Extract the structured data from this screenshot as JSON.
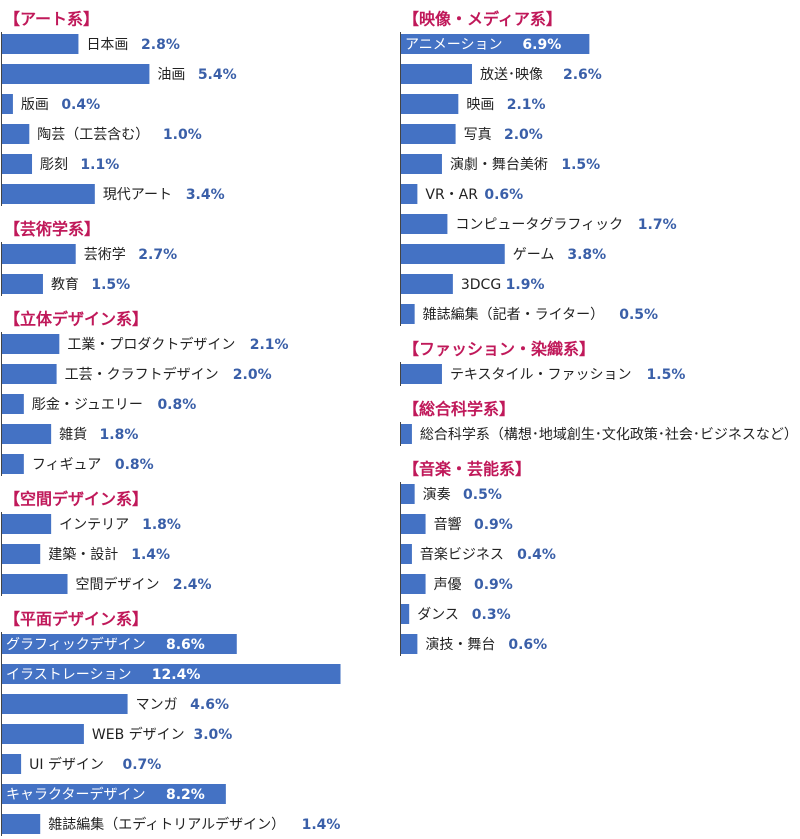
{
  "colors": {
    "bar": "#4472c4",
    "heading": "#c0195a",
    "value": "#3a5fa8",
    "label": "#222222"
  },
  "chart_data": {
    "type": "bar",
    "orientation": "horizontal",
    "unit": "%",
    "groups": [
      {
        "heading": "【アート系】",
        "items": [
          {
            "label": "日本画",
            "value": 2.8,
            "value_label": "2.8%"
          },
          {
            "label": "油画",
            "value": 5.4,
            "value_label": "5.4%"
          },
          {
            "label": "版画",
            "value": 0.4,
            "value_label": "0.4%"
          },
          {
            "label": "陶芸（工芸含む）",
            "value": 1.0,
            "value_label": "1.0%"
          },
          {
            "label": "彫刻",
            "value": 1.1,
            "value_label": "1.1%"
          },
          {
            "label": "現代アート",
            "value": 3.4,
            "value_label": "3.4%"
          }
        ]
      },
      {
        "heading": "【芸術学系】",
        "items": [
          {
            "label": "芸術学",
            "value": 2.7,
            "value_label": "2.7%"
          },
          {
            "label": "教育",
            "value": 1.5,
            "value_label": "1.5%"
          }
        ]
      },
      {
        "heading": "【立体デザイン系】",
        "items": [
          {
            "label": "工業・プロダクトデザイン",
            "value": 2.1,
            "value_label": "2.1%"
          },
          {
            "label": "工芸・クラフトデザイン",
            "value": 2.0,
            "value_label": "2.0%"
          },
          {
            "label": "彫金・ジュエリー",
            "value": 0.8,
            "value_label": "0.8%"
          },
          {
            "label": "雑貨",
            "value": 1.8,
            "value_label": "1.8%"
          },
          {
            "label": "フィギュア",
            "value": 0.8,
            "value_label": "0.8%"
          }
        ]
      },
      {
        "heading": "【空間デザイン系】",
        "items": [
          {
            "label": "インテリア",
            "value": 1.8,
            "value_label": "1.8%"
          },
          {
            "label": "建築・設計",
            "value": 1.4,
            "value_label": "1.4%"
          },
          {
            "label": "空間デザイン",
            "value": 2.4,
            "value_label": "2.4%"
          }
        ]
      },
      {
        "heading": "【平面デザイン系】",
        "items": [
          {
            "label": "グラフィックデザイン",
            "value": 8.6,
            "value_label": "8.6%",
            "inside": true
          },
          {
            "label": "イラストレーション",
            "value": 12.4,
            "value_label": "12.4%",
            "inside": true
          },
          {
            "label": "マンガ",
            "value": 4.6,
            "value_label": "4.6%"
          },
          {
            "label": "WEB デザイン",
            "value": 3.0,
            "value_label": "3.0%"
          },
          {
            "label": "UI デザイン",
            "value": 0.7,
            "value_label": "0.7%"
          },
          {
            "label": "キャラクターデザイン",
            "value": 8.2,
            "value_label": "8.2%",
            "inside": true
          },
          {
            "label": "雑誌編集（エディトリアルデザイン）",
            "value": 1.4,
            "value_label": "1.4%"
          }
        ]
      },
      {
        "heading": "【映像・メディア系】",
        "items": [
          {
            "label": "アニメーション",
            "value": 6.9,
            "value_label": "6.9%",
            "inside": true
          },
          {
            "label": "放送･映像",
            "value": 2.6,
            "value_label": "2.6%"
          },
          {
            "label": "映画",
            "value": 2.1,
            "value_label": "2.1%"
          },
          {
            "label": "写真",
            "value": 2.0,
            "value_label": "2.0%"
          },
          {
            "label": "演劇・舞台美術",
            "value": 1.5,
            "value_label": "1.5%"
          },
          {
            "label": "VR・AR",
            "value": 0.6,
            "value_label": "0.6%"
          },
          {
            "label": "コンピュータグラフィック",
            "value": 1.7,
            "value_label": "1.7%"
          },
          {
            "label": "ゲーム",
            "value": 3.8,
            "value_label": "3.8%"
          },
          {
            "label": "3DCG",
            "value": 1.9,
            "value_label": "1.9%"
          },
          {
            "label": "雑誌編集（記者・ライター）",
            "value": 0.5,
            "value_label": "0.5%"
          }
        ]
      },
      {
        "heading": "【ファッション・染織系】",
        "items": [
          {
            "label": "テキスタイル・ファッション",
            "value": 1.5,
            "value_label": "1.5%"
          }
        ]
      },
      {
        "heading": "【総合科学系】",
        "items": [
          {
            "label": "総合科学系（構想･地域創生･文化政策･社会･ビジネスなど）",
            "value": 0.4,
            "value_label": "0.4%"
          }
        ]
      },
      {
        "heading": "【音楽・芸能系】",
        "items": [
          {
            "label": "演奏",
            "value": 0.5,
            "value_label": "0.5%"
          },
          {
            "label": "音響",
            "value": 0.9,
            "value_label": "0.9%"
          },
          {
            "label": "音楽ビジネス",
            "value": 0.4,
            "value_label": "0.4%"
          },
          {
            "label": "声優",
            "value": 0.9,
            "value_label": "0.9%"
          },
          {
            "label": "ダンス",
            "value": 0.3,
            "value_label": "0.3%"
          },
          {
            "label": "演技・舞台",
            "value": 0.6,
            "value_label": "0.6%"
          }
        ]
      }
    ]
  }
}
